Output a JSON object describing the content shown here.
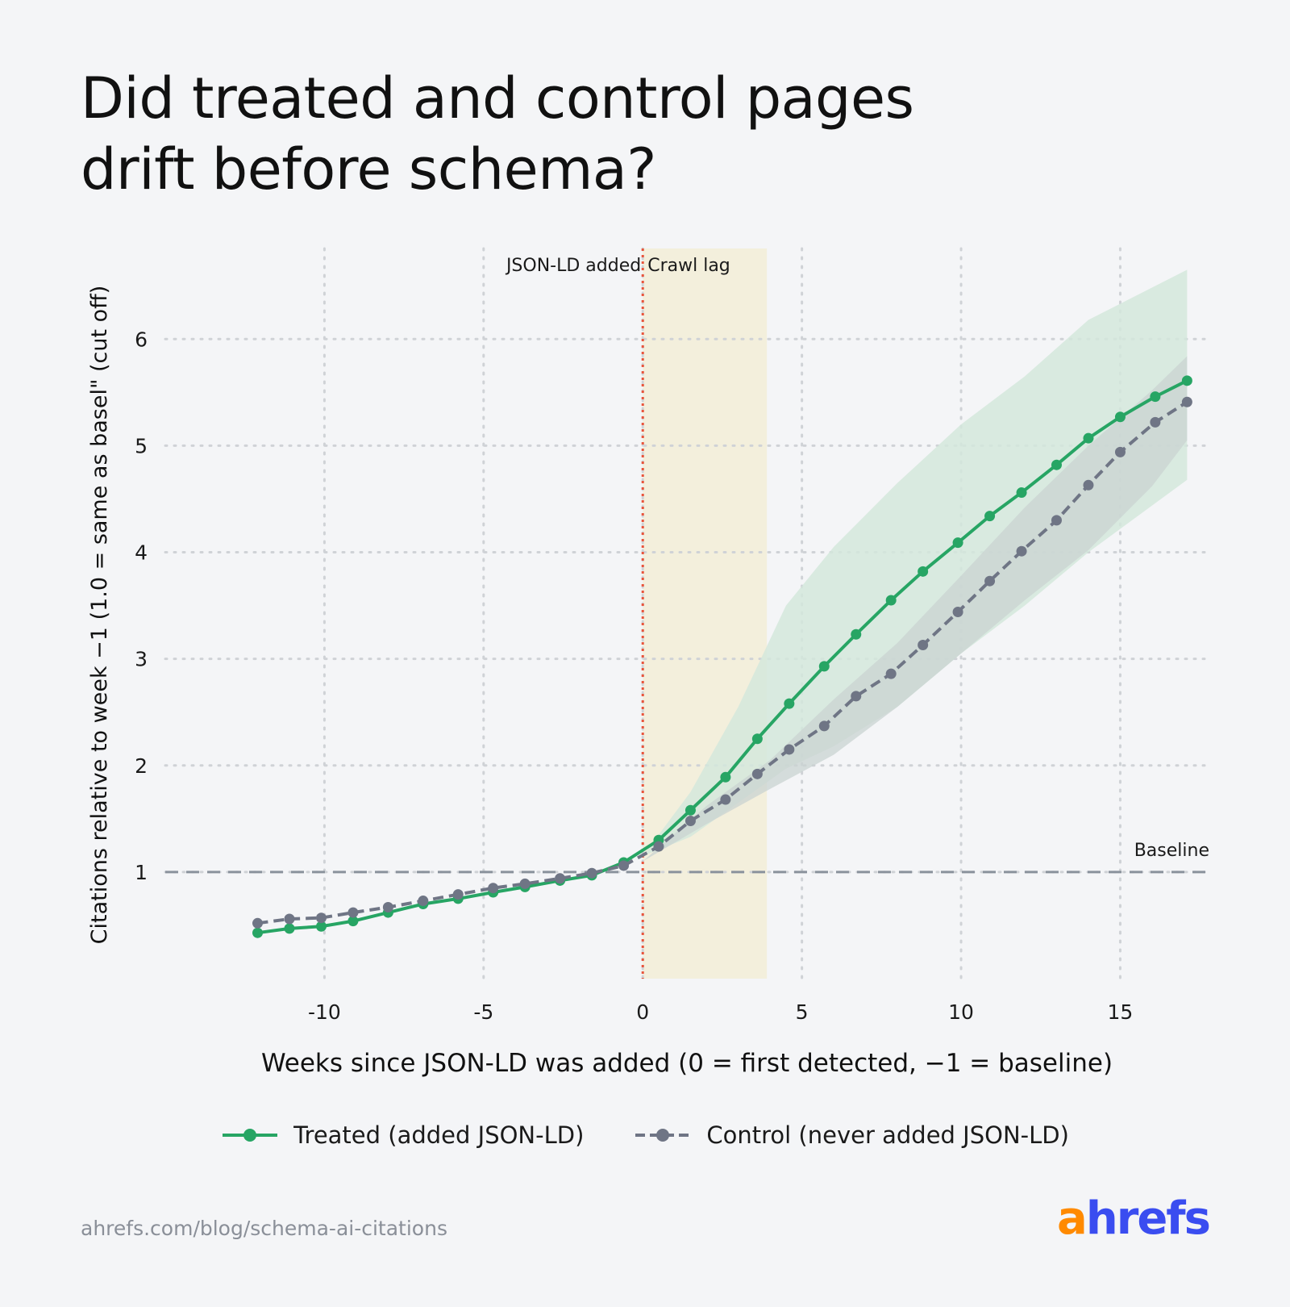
{
  "title_lines": [
    "Did treated and control pages",
    "drift before schema?"
  ],
  "source": "ahrefs.com/blog/schema-ai-citations",
  "brand": {
    "first": "a",
    "rest": "hrefs"
  },
  "colors": {
    "treated": "#27a564",
    "control": "#6f7585",
    "treated_band": "#d4e8dc",
    "control_band": "#c9d3d1",
    "crawl_lag": "#f3efdc",
    "event_line": "#e8553c",
    "baseline": "#8a929c",
    "grid": "#cfd2d6"
  },
  "chart_data": {
    "type": "line",
    "title": "Did treated and control pages drift before schema?",
    "xlabel": "Weeks since JSON-LD was added (0 = first detected, −1 = baseline)",
    "ylabel": "Citations relative to week −1 (1.0 = same as basel\" (cut off)",
    "xlim": [
      -15.0,
      17.8
    ],
    "ylim": [
      0.0,
      6.85
    ],
    "xticks": [
      -10,
      -5,
      0,
      5,
      10,
      15
    ],
    "xtick_labels": [
      "-10",
      "-5",
      "0",
      "5",
      "10",
      "15"
    ],
    "yticks": [
      1,
      2,
      3,
      4,
      5,
      6
    ],
    "ytick_labels": [
      "1",
      "2",
      "3",
      "4",
      "5",
      "6"
    ],
    "grid": true,
    "legend_position": "bottom-center",
    "annotations": {
      "event_label": "JSON-LD added",
      "event_x": 0,
      "crawl_lag_label": "Crawl lag",
      "crawl_lag_range": [
        0,
        3.9
      ],
      "baseline_label": "Baseline",
      "baseline_y": 1.0
    },
    "series": [
      {
        "name": "Treated (added JSON-LD)",
        "style": "solid",
        "x": [
          -12.1,
          -11.1,
          -10.1,
          -9.1,
          -8.0,
          -6.9,
          -5.8,
          -4.7,
          -3.7,
          -2.6,
          -1.6,
          -0.6,
          0.5,
          1.5,
          2.6,
          3.6,
          4.6,
          5.7,
          6.7,
          7.8,
          8.8,
          9.9,
          10.9,
          11.9,
          13.0,
          14.0,
          15.0,
          16.1,
          17.1
        ],
        "y": [
          0.43,
          0.47,
          0.49,
          0.54,
          0.62,
          0.7,
          0.75,
          0.81,
          0.86,
          0.92,
          0.97,
          1.09,
          1.3,
          1.58,
          1.89,
          2.25,
          2.58,
          2.93,
          3.23,
          3.55,
          3.82,
          4.09,
          4.34,
          4.56,
          4.82,
          5.07,
          5.27,
          5.46,
          5.61
        ],
        "band_x": [
          0.0,
          1.5,
          3.0,
          4.5,
          6.0,
          8.0,
          10.0,
          12.0,
          14.0,
          17.1
        ],
        "band_low": [
          1.15,
          1.33,
          1.65,
          1.97,
          2.18,
          2.55,
          3.05,
          3.5,
          4.0,
          4.68
        ],
        "band_high": [
          1.15,
          1.75,
          2.55,
          3.5,
          4.05,
          4.65,
          5.2,
          5.65,
          6.18,
          6.65
        ]
      },
      {
        "name": "Control (never added JSON-LD)",
        "style": "dashed",
        "x": [
          -12.1,
          -11.1,
          -10.1,
          -9.1,
          -8.0,
          -6.9,
          -5.8,
          -4.7,
          -3.7,
          -2.6,
          -1.6,
          -0.6,
          0.5,
          1.5,
          2.6,
          3.6,
          4.6,
          5.7,
          6.7,
          7.8,
          8.8,
          9.9,
          10.9,
          11.9,
          13.0,
          14.0,
          15.0,
          16.1,
          17.1
        ],
        "y": [
          0.52,
          0.56,
          0.57,
          0.62,
          0.67,
          0.73,
          0.79,
          0.85,
          0.89,
          0.94,
          0.99,
          1.06,
          1.24,
          1.48,
          1.68,
          1.92,
          2.15,
          2.37,
          2.65,
          2.86,
          3.13,
          3.44,
          3.73,
          4.01,
          4.3,
          4.63,
          4.94,
          5.22,
          5.41
        ],
        "band_x": [
          0.0,
          2.0,
          4.0,
          6.0,
          8.0,
          10.0,
          12.0,
          14.0,
          16.0,
          17.1
        ],
        "band_low": [
          1.1,
          1.45,
          1.78,
          2.1,
          2.55,
          3.05,
          3.55,
          4.02,
          4.62,
          5.05
        ],
        "band_high": [
          1.1,
          1.62,
          2.05,
          2.62,
          3.15,
          3.78,
          4.42,
          5.0,
          5.52,
          5.84
        ]
      }
    ]
  }
}
